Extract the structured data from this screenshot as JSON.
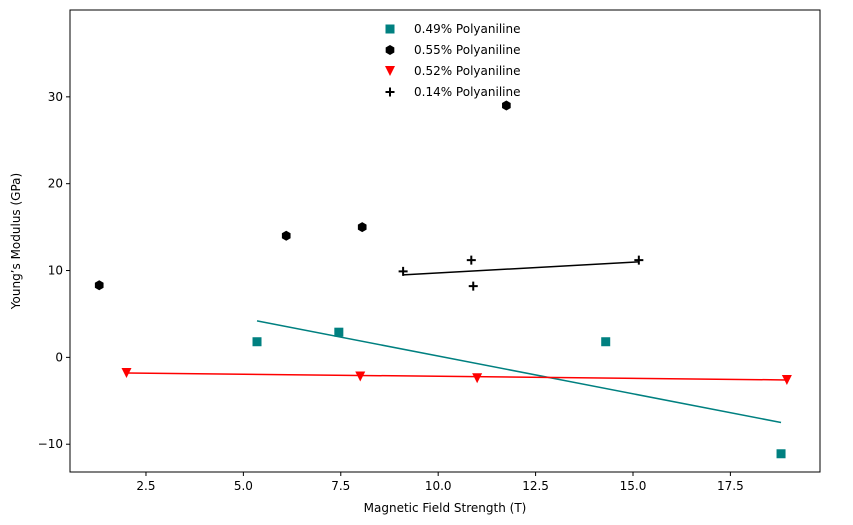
{
  "chart_data": {
    "type": "scatter",
    "title": "",
    "xlabel": "Magnetic Field Strength (T)",
    "ylabel": "Young’s Modulus (GPa)",
    "xlim": [
      0.55,
      19.8
    ],
    "ylim": [
      -13.2,
      40
    ],
    "xticks": [
      2.5,
      5.0,
      7.5,
      10.0,
      12.5,
      15.0,
      17.5
    ],
    "xtick_labels": [
      "2.5",
      "5.0",
      "7.5",
      "10.0",
      "12.5",
      "15.0",
      "17.5"
    ],
    "yticks": [
      -10,
      0,
      10,
      20,
      30
    ],
    "ytick_labels": [
      "−10",
      "0",
      "10",
      "20",
      "30"
    ],
    "grid": false,
    "legend_position": "top-center",
    "series": [
      {
        "name": "0.49% Polyaniline",
        "marker": "square",
        "color": "#008080",
        "x": [
          5.35,
          7.45,
          14.3,
          18.8
        ],
        "y": [
          1.8,
          2.9,
          1.8,
          -11.1
        ],
        "trend": [
          [
            5.35,
            4.2
          ],
          [
            18.8,
            -7.5
          ]
        ]
      },
      {
        "name": "0.55% Polyaniline",
        "marker": "hexagon",
        "color": "#000000",
        "x": [
          1.3,
          6.1,
          8.05,
          11.75
        ],
        "y": [
          8.3,
          14.0,
          15.0,
          29.0
        ]
      },
      {
        "name": "0.52% Polyaniline",
        "marker": "triangle-down",
        "color": "#ff0000",
        "x": [
          2.0,
          8.0,
          11.0,
          18.95
        ],
        "y": [
          -1.8,
          -2.2,
          -2.4,
          -2.6
        ],
        "trend": [
          [
            2.0,
            -1.8
          ],
          [
            18.95,
            -2.6
          ]
        ]
      },
      {
        "name": "0.14% Polyaniline",
        "marker": "plus",
        "color": "#000000",
        "x": [
          9.1,
          10.85,
          10.9,
          15.15
        ],
        "y": [
          9.9,
          11.2,
          8.2,
          11.2
        ],
        "trend": [
          [
            9.1,
            9.5
          ],
          [
            15.15,
            11.0
          ]
        ]
      }
    ]
  }
}
